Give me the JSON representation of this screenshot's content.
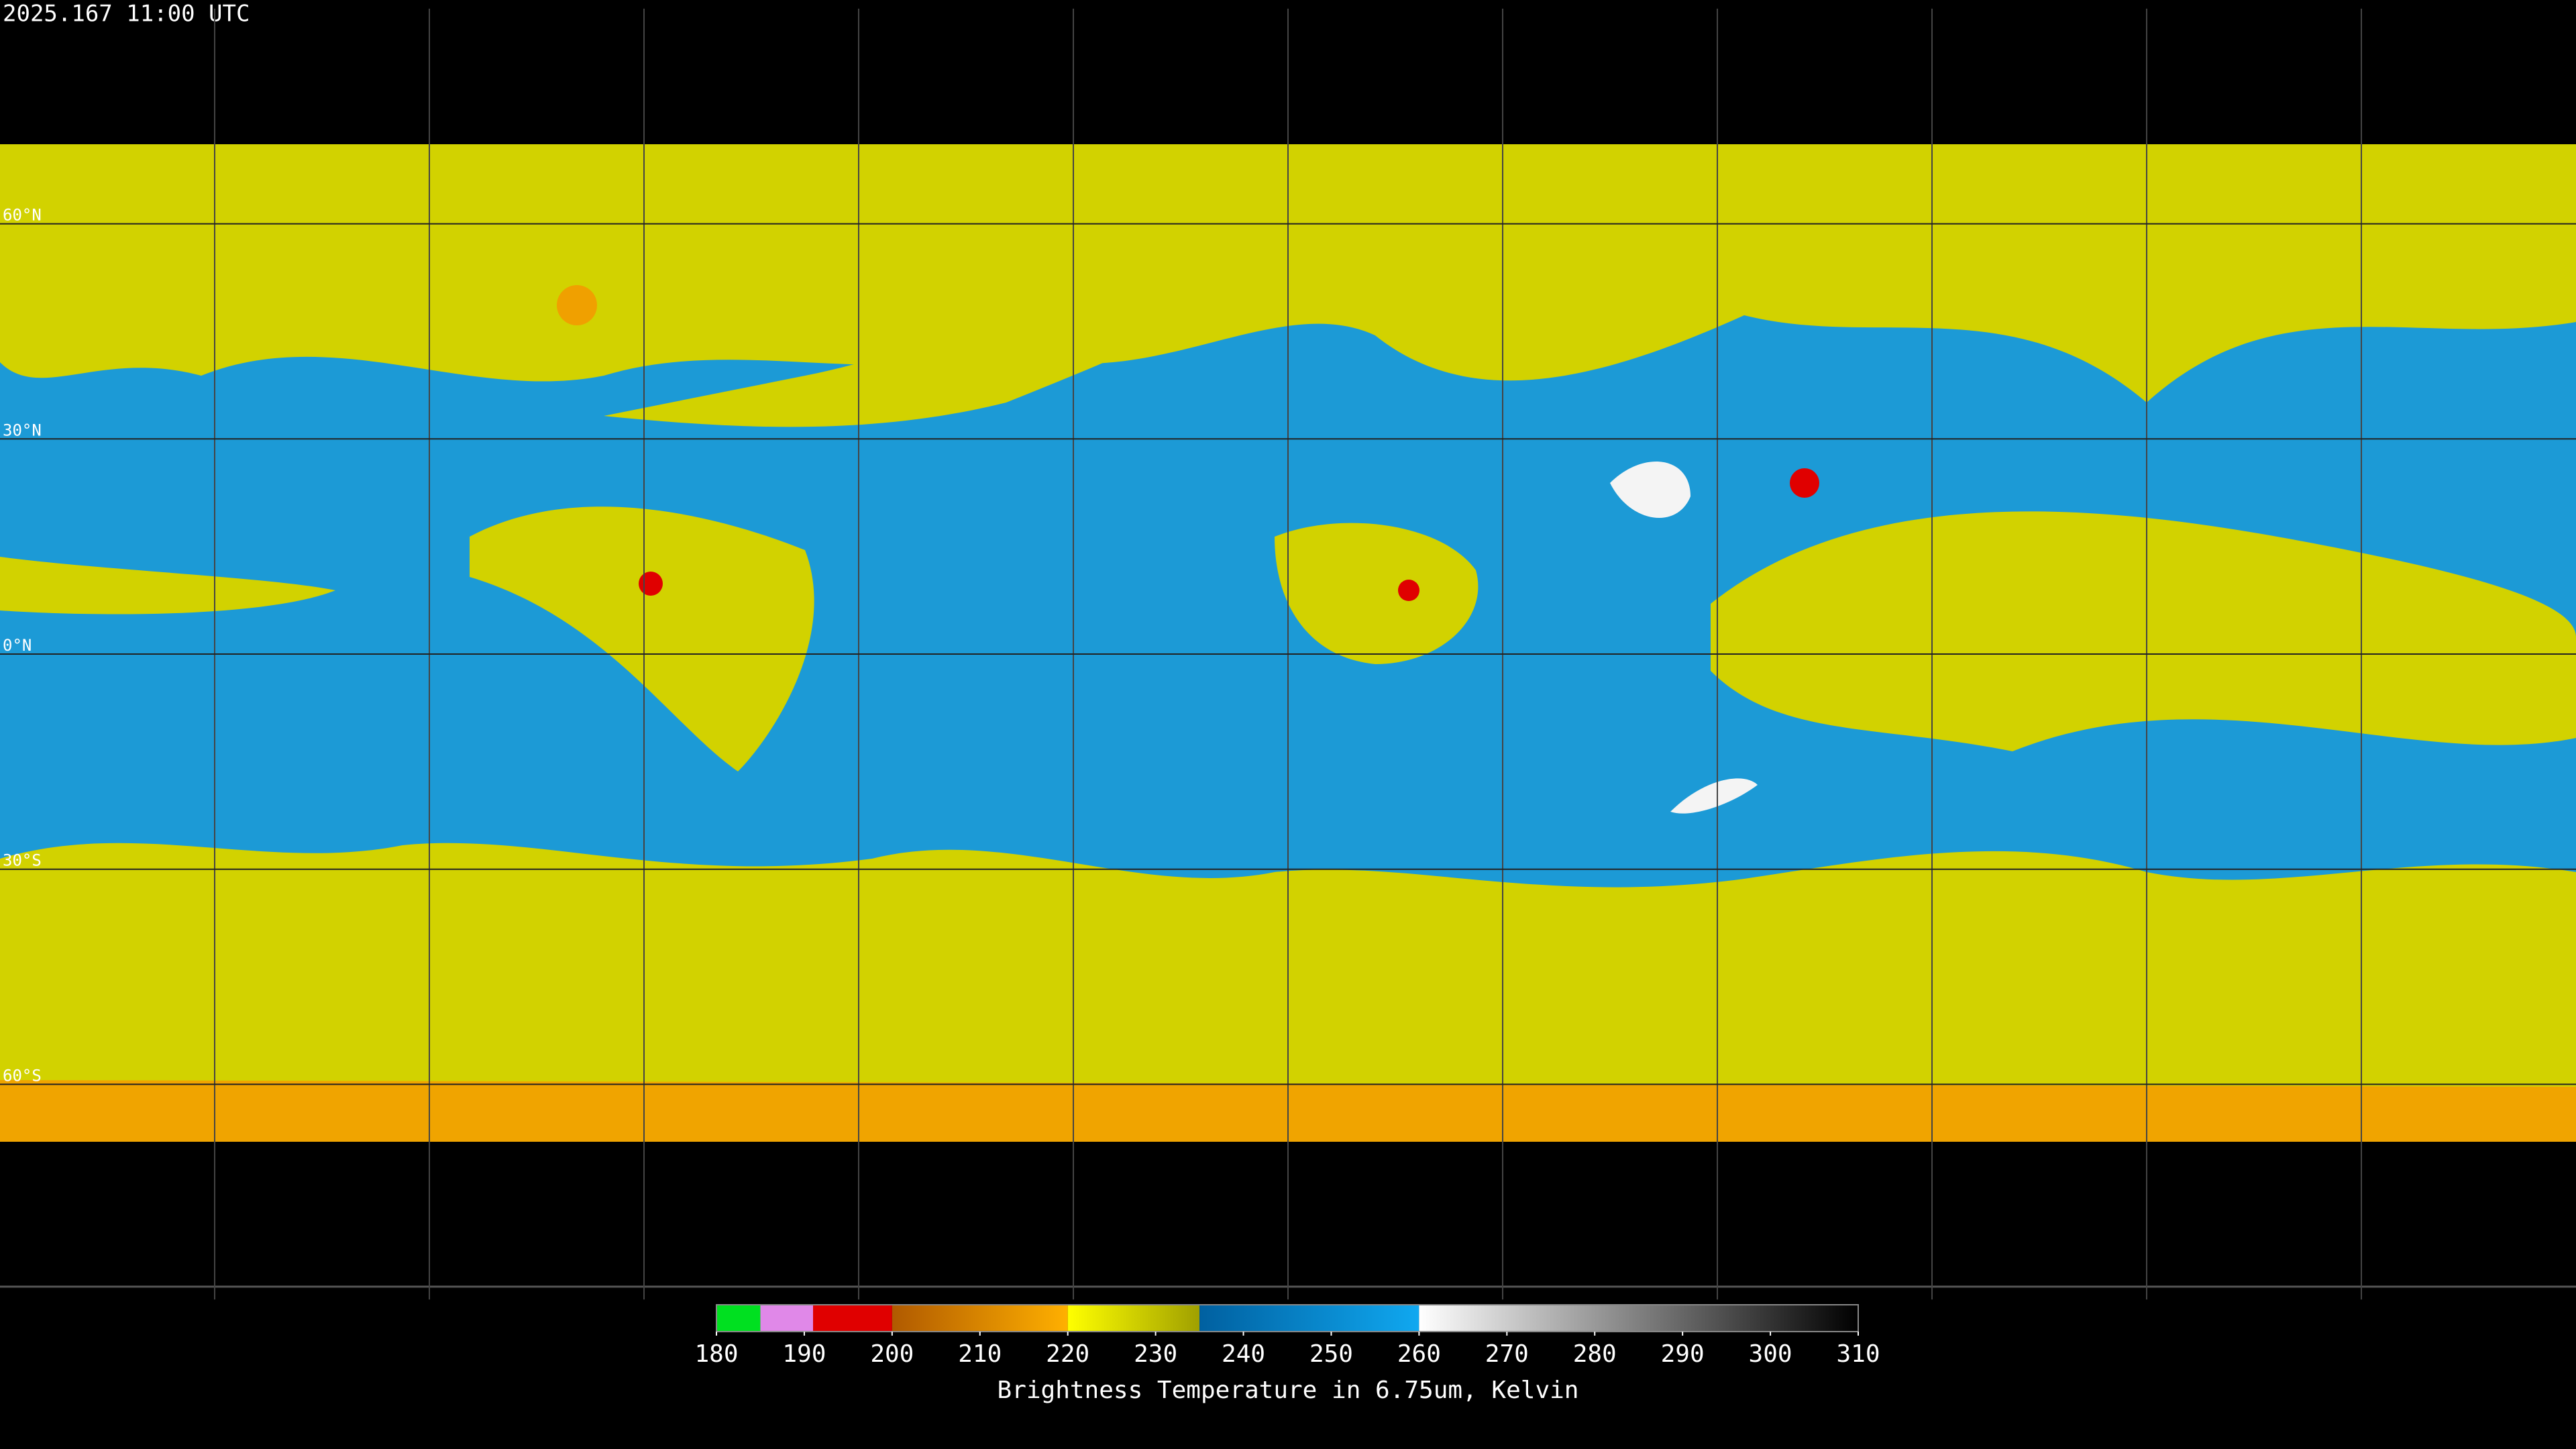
{
  "timestamp": "2025.167 11:00 UTC",
  "grid": {
    "latitudes": [
      {
        "value": 60,
        "label": "60°N"
      },
      {
        "value": 30,
        "label": "30°N"
      },
      {
        "value": 0,
        "label": "0°N"
      },
      {
        "value": -30,
        "label": "30°S"
      },
      {
        "value": -60,
        "label": "60°S"
      }
    ],
    "longitudes": [
      -150,
      -120,
      -90,
      -60,
      -30,
      0,
      30,
      60,
      90,
      120,
      150
    ]
  },
  "colorbar": {
    "title": "Brightness Temperature in 6.75um, Kelvin",
    "range": [
      180,
      310
    ],
    "ticks": [
      180,
      190,
      200,
      210,
      220,
      230,
      240,
      250,
      260,
      270,
      280,
      290,
      300,
      310
    ],
    "segments": [
      {
        "from": 180,
        "to": 185,
        "colors": [
          "#00e020",
          "#00e020"
        ]
      },
      {
        "from": 185,
        "to": 191,
        "colors": [
          "#e088e8",
          "#e088e8"
        ]
      },
      {
        "from": 191,
        "to": 200,
        "colors": [
          "#e00000",
          "#e00000"
        ]
      },
      {
        "from": 200,
        "to": 220,
        "colors": [
          "#b05a00",
          "#ffb000"
        ]
      },
      {
        "from": 220,
        "to": 235,
        "colors": [
          "#ffff00",
          "#a0a000"
        ]
      },
      {
        "from": 235,
        "to": 260,
        "colors": [
          "#0060a0",
          "#10a8f0"
        ]
      },
      {
        "from": 260,
        "to": 310,
        "colors": [
          "#ffffff",
          "#000000"
        ]
      }
    ]
  }
}
